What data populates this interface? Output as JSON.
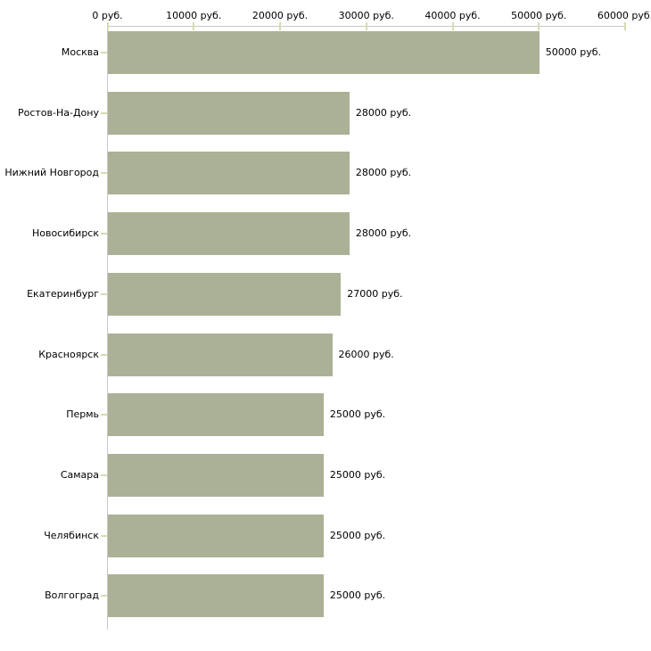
{
  "chart_data": {
    "type": "bar",
    "orientation": "horizontal",
    "title": "",
    "xlabel": "",
    "ylabel": "",
    "xlim": [
      0,
      60000
    ],
    "grid": false,
    "legend": null,
    "x_tick_values": [
      0,
      10000,
      20000,
      30000,
      40000,
      50000,
      60000
    ],
    "x_tick_labels": [
      "0 руб.",
      "10000 руб.",
      "20000 руб.",
      "30000 руб.",
      "40000 руб.",
      "50000 руб.",
      "60000 руб."
    ],
    "categories": [
      "Москва",
      "Ростов-На-Дону",
      "Нижний Новгород",
      "Новосибирск",
      "Екатеринбург",
      "Красноярск",
      "Пермь",
      "Самара",
      "Челябинск",
      "Волгоград"
    ],
    "values": [
      50000,
      28000,
      28000,
      28000,
      27000,
      26000,
      25000,
      25000,
      25000,
      25000
    ],
    "value_labels": [
      "50000 руб.",
      "28000 руб.",
      "28000 руб.",
      "28000 руб.",
      "27000 руб.",
      "26000 руб.",
      "25000 руб.",
      "25000 руб.",
      "25000 руб.",
      "25000 руб."
    ],
    "colors": {
      "bar": "#aab196",
      "tick_mark": "#d6dbb0",
      "axis_line": "#c8c8c8",
      "text": "#000000",
      "background": "#ffffff"
    }
  }
}
